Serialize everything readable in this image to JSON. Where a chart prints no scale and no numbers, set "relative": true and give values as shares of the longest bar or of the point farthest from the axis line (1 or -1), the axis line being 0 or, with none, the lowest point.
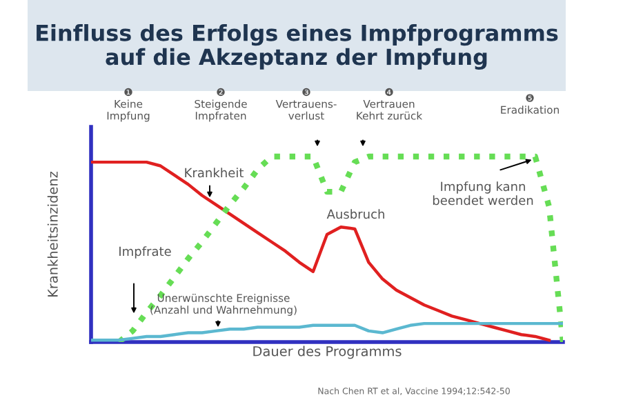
{
  "chart_data": {
    "type": "line",
    "relative": true,
    "title": "Einfluss des Erfolgs eines Impfprogramms\nauf die Akzeptanz der Impfung",
    "xlabel": "Dauer des Programms",
    "ylabel": "Krankheitsinzidenz",
    "tick_labels": false,
    "legend": false,
    "categories": [
      null,
      null,
      null,
      null,
      null,
      null,
      null,
      null,
      null,
      null,
      null,
      null,
      null,
      null,
      null,
      null,
      null,
      null,
      null,
      null,
      null,
      null,
      null,
      null,
      null,
      null,
      null,
      null,
      null,
      null,
      null,
      null,
      null,
      null,
      null
    ],
    "series": [
      {
        "name": "Krankheit",
        "color": "#e02020",
        "line_style": "solid",
        "values": [
          0.97,
          0.97,
          0.97,
          0.97,
          0.97,
          0.95,
          0.9,
          0.85,
          0.79,
          0.74,
          0.69,
          0.64,
          0.59,
          0.54,
          0.49,
          0.43,
          0.38,
          0.58,
          0.62,
          0.61,
          0.43,
          0.34,
          0.28,
          0.24,
          0.2,
          0.17,
          0.14,
          0.12,
          0.1,
          0.08,
          0.06,
          0.04,
          0.03,
          0.01,
          null
        ]
      },
      {
        "name": "Impfrate",
        "color": "#66dd55",
        "line_style": "dotted",
        "values": [
          null,
          null,
          0.0,
          0.06,
          0.16,
          0.25,
          0.35,
          0.45,
          0.54,
          0.64,
          0.74,
          0.83,
          0.93,
          1.0,
          1.0,
          1.0,
          1.0,
          0.81,
          0.81,
          0.97,
          1.0,
          1.0,
          1.0,
          1.0,
          1.0,
          1.0,
          1.0,
          1.0,
          1.0,
          1.0,
          1.0,
          1.0,
          1.0,
          0.73,
          0.0
        ]
      },
      {
        "name": "Unerwünschte Ereignisse\n(Anzahl und Wahrnehmung)",
        "color": "#5bb8d0",
        "line_style": "solid",
        "values": [
          0.01,
          0.01,
          0.01,
          0.02,
          0.03,
          0.03,
          0.04,
          0.05,
          0.05,
          0.06,
          0.07,
          0.07,
          0.08,
          0.08,
          0.08,
          0.08,
          0.09,
          0.09,
          0.09,
          0.09,
          0.06,
          0.05,
          0.07,
          0.09,
          0.1,
          0.1,
          0.1,
          0.1,
          0.1,
          0.1,
          0.1,
          0.1,
          0.1,
          0.1,
          0.1
        ]
      }
    ],
    "annotations": [
      "❶\nKeine\nImpfung",
      "❷\nSteigende\nImpfraten",
      "❸\nVertrauens-\nverlust",
      "❹\nVertrauen\nKehrt zurück",
      "❺\nEradikation",
      "Ausbruch",
      "Impfung kann\nbeendet werden",
      "Nach Chen RT et al, Vaccine 1994;12:542-50"
    ]
  }
}
